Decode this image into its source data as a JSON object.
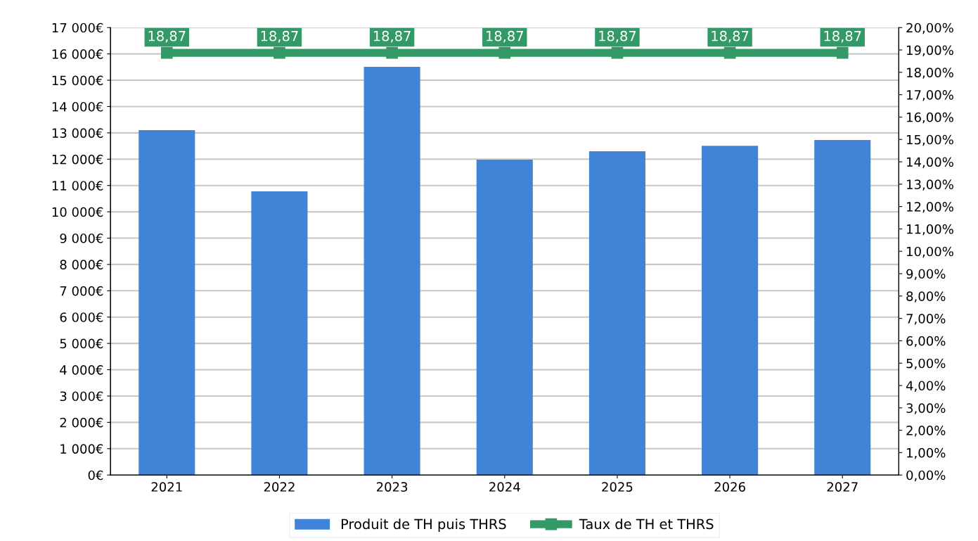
{
  "chart_data": {
    "type": "bar",
    "categories": [
      "2021",
      "2022",
      "2023",
      "2024",
      "2025",
      "2026",
      "2027"
    ],
    "series": [
      {
        "name": "Produit de TH puis THRS",
        "color": "#4183d7",
        "values": [
          13100,
          10780,
          15510,
          11980,
          12300,
          12510,
          12730
        ]
      },
      {
        "name": "Taux de TH et THRS",
        "type": "line",
        "axis": "y2",
        "color": "#339966",
        "marker": "square",
        "values": [
          18.87,
          18.87,
          18.87,
          18.87,
          18.87,
          18.87,
          18.87
        ],
        "value_labels": [
          "18,87",
          "18,87",
          "18,87",
          "18,87",
          "18,87",
          "18,87",
          "18,87"
        ]
      }
    ],
    "ylim": [
      0,
      17000
    ],
    "yticks": [
      {
        "value": 0,
        "label": "0€"
      },
      {
        "value": 1000,
        "label": "1 000€"
      },
      {
        "value": 2000,
        "label": "2 000€"
      },
      {
        "value": 3000,
        "label": "3 000€"
      },
      {
        "value": 4000,
        "label": "4 000€"
      },
      {
        "value": 5000,
        "label": "5 000€"
      },
      {
        "value": 6000,
        "label": "6 000€"
      },
      {
        "value": 7000,
        "label": "7 000€"
      },
      {
        "value": 8000,
        "label": "8 000€"
      },
      {
        "value": 9000,
        "label": "9 000€"
      },
      {
        "value": 10000,
        "label": "10 000€"
      },
      {
        "value": 11000,
        "label": "11 000€"
      },
      {
        "value": 12000,
        "label": "12 000€"
      },
      {
        "value": 13000,
        "label": "13 000€"
      },
      {
        "value": 14000,
        "label": "14 000€"
      },
      {
        "value": 15000,
        "label": "15 000€"
      },
      {
        "value": 16000,
        "label": "16 000€"
      },
      {
        "value": 17000,
        "label": "17 000€"
      }
    ],
    "y2lim": [
      0,
      20
    ],
    "y2ticks": [
      {
        "value": 0,
        "label": "0,00%"
      },
      {
        "value": 1,
        "label": "1,00%"
      },
      {
        "value": 2,
        "label": "2,00%"
      },
      {
        "value": 3,
        "label": "3,00%"
      },
      {
        "value": 4,
        "label": "4,00%"
      },
      {
        "value": 5,
        "label": "5,00%"
      },
      {
        "value": 6,
        "label": "6,00%"
      },
      {
        "value": 7,
        "label": "7,00%"
      },
      {
        "value": 8,
        "label": "8,00%"
      },
      {
        "value": 9,
        "label": "9,00%"
      },
      {
        "value": 10,
        "label": "10,00%"
      },
      {
        "value": 11,
        "label": "11,00%"
      },
      {
        "value": 12,
        "label": "12,00%"
      },
      {
        "value": 13,
        "label": "13,00%"
      },
      {
        "value": 14,
        "label": "14,00%"
      },
      {
        "value": 15,
        "label": "15,00%"
      },
      {
        "value": 16,
        "label": "16,00%"
      },
      {
        "value": 17,
        "label": "17,00%"
      },
      {
        "value": 18,
        "label": "18,00%"
      },
      {
        "value": 19,
        "label": "19,00%"
      },
      {
        "value": 20,
        "label": "20,00%"
      }
    ],
    "grid": "y",
    "legend": "bottom"
  }
}
